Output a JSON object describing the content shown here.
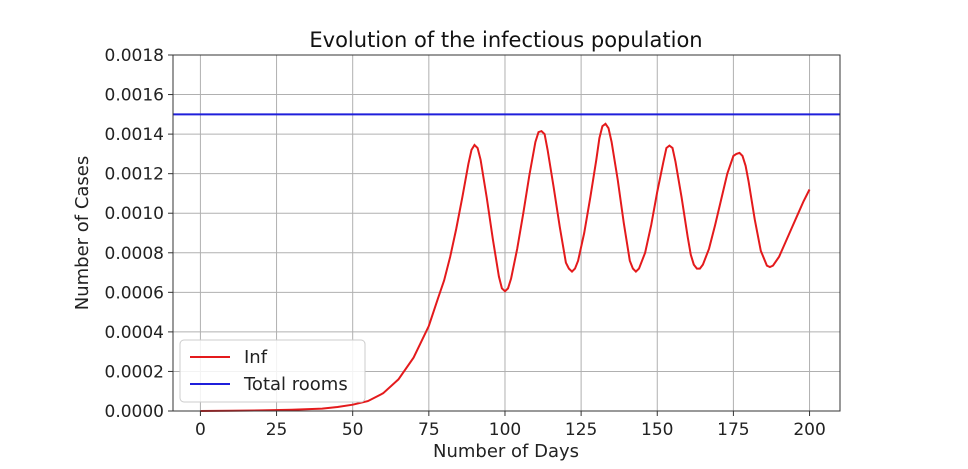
{
  "chart_data": {
    "type": "line",
    "title": "Evolution of the infectious population",
    "xlabel": "Number of Days",
    "ylabel": "Number of Cases",
    "xlim": [
      -9,
      210
    ],
    "ylim": [
      0,
      0.0018
    ],
    "xticks": [
      0,
      25,
      50,
      75,
      100,
      125,
      150,
      175,
      200
    ],
    "yticks": [
      0.0,
      0.0002,
      0.0004,
      0.0006,
      0.0008,
      0.001,
      0.0012,
      0.0014,
      0.0016,
      0.0018
    ],
    "xtick_labels": [
      "0",
      "25",
      "50",
      "75",
      "100",
      "125",
      "150",
      "175",
      "200"
    ],
    "ytick_labels": [
      "0.0000",
      "0.0002",
      "0.0004",
      "0.0006",
      "0.0008",
      "0.0010",
      "0.0012",
      "0.0014",
      "0.0016",
      "0.0018"
    ],
    "grid": true,
    "legend_position": "lower-left",
    "series": [
      {
        "name": "Inf",
        "color": "#e41a1c",
        "kind": "line",
        "points": [
          [
            0,
            0.0
          ],
          [
            10,
            1e-06
          ],
          [
            20,
            3e-06
          ],
          [
            30,
            6e-06
          ],
          [
            40,
            1.2e-05
          ],
          [
            45,
            2e-05
          ],
          [
            50,
            3.2e-05
          ],
          [
            55,
            5e-05
          ],
          [
            60,
            9e-05
          ],
          [
            65,
            0.00016
          ],
          [
            70,
            0.00027
          ],
          [
            75,
            0.00043
          ],
          [
            78,
            0.00057
          ],
          [
            80,
            0.00066
          ],
          [
            82,
            0.00078
          ],
          [
            84,
            0.00092
          ],
          [
            86,
            0.00108
          ],
          [
            88,
            0.00125
          ],
          [
            89,
            0.00132
          ],
          [
            90,
            0.001345
          ],
          [
            91,
            0.00133
          ],
          [
            92,
            0.00127
          ],
          [
            94,
            0.00108
          ],
          [
            96,
            0.00087
          ],
          [
            98,
            0.00068
          ],
          [
            99,
            0.00062
          ],
          [
            100,
            0.000605
          ],
          [
            101,
            0.00062
          ],
          [
            102,
            0.00067
          ],
          [
            104,
            0.00082
          ],
          [
            106,
            0.001
          ],
          [
            108,
            0.00119
          ],
          [
            110,
            0.00136
          ],
          [
            111,
            0.00141
          ],
          [
            112,
            0.001415
          ],
          [
            113,
            0.0014
          ],
          [
            114,
            0.00132
          ],
          [
            116,
            0.00113
          ],
          [
            118,
            0.00093
          ],
          [
            120,
            0.00075
          ],
          [
            121,
            0.00072
          ],
          [
            122,
            0.000705
          ],
          [
            123,
            0.00072
          ],
          [
            124,
            0.00076
          ],
          [
            126,
            0.0009
          ],
          [
            128,
            0.00108
          ],
          [
            130,
            0.00127
          ],
          [
            131,
            0.00138
          ],
          [
            132,
            0.00144
          ],
          [
            133,
            0.001452
          ],
          [
            134,
            0.00143
          ],
          [
            135,
            0.00136
          ],
          [
            137,
            0.00117
          ],
          [
            139,
            0.00095
          ],
          [
            141,
            0.00076
          ],
          [
            142,
            0.00072
          ],
          [
            143,
            0.000705
          ],
          [
            144,
            0.00072
          ],
          [
            146,
            0.0008
          ],
          [
            148,
            0.00094
          ],
          [
            150,
            0.00111
          ],
          [
            152,
            0.00126
          ],
          [
            153,
            0.00133
          ],
          [
            154,
            0.001342
          ],
          [
            155,
            0.00133
          ],
          [
            156,
            0.00126
          ],
          [
            158,
            0.00108
          ],
          [
            160,
            0.00088
          ],
          [
            161,
            0.00079
          ],
          [
            162,
            0.00074
          ],
          [
            163,
            0.00072
          ],
          [
            164,
            0.00072
          ],
          [
            165,
            0.00074
          ],
          [
            167,
            0.00082
          ],
          [
            169,
            0.00094
          ],
          [
            171,
            0.00107
          ],
          [
            173,
            0.0012
          ],
          [
            175,
            0.00129
          ],
          [
            176,
            0.0013
          ],
          [
            177,
            0.001305
          ],
          [
            178,
            0.00129
          ],
          [
            179,
            0.00124
          ],
          [
            180,
            0.00116
          ],
          [
            182,
            0.00097
          ],
          [
            184,
            0.00081
          ],
          [
            186,
            0.000735
          ],
          [
            187,
            0.000728
          ],
          [
            188,
            0.000735
          ],
          [
            190,
            0.00078
          ],
          [
            192,
            0.00085
          ],
          [
            194,
            0.00092
          ],
          [
            196,
            0.00099
          ],
          [
            198,
            0.00106
          ],
          [
            200,
            0.00112
          ]
        ]
      },
      {
        "name": "Total rooms",
        "color": "#1f1fdb",
        "kind": "hline",
        "value": 0.0015
      }
    ]
  }
}
